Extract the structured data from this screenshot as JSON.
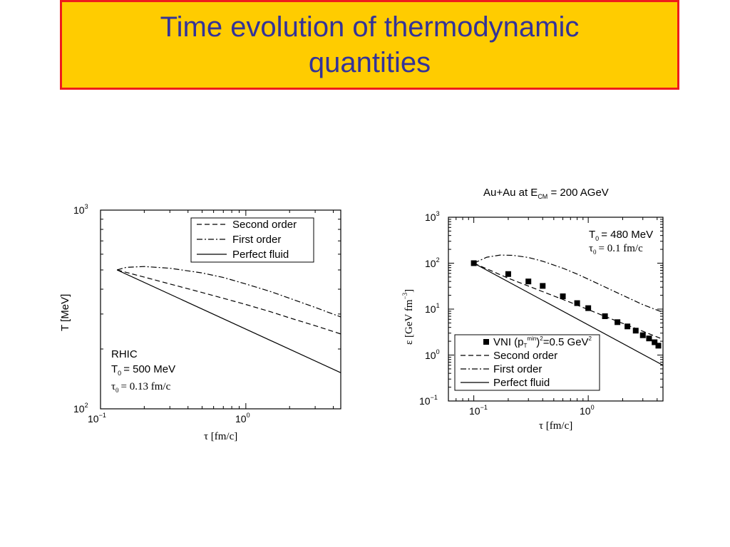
{
  "slide": {
    "title": "Time evolution of thermodynamic quantities",
    "colors": {
      "title_bg": "#FFCC00",
      "title_border": "#EE1C1C",
      "title_text": "#333399"
    }
  },
  "chart_data": [
    {
      "type": "line",
      "xscale": "log",
      "yscale": "log",
      "xlim": [
        0.1,
        4.5
      ],
      "ylim": [
        100,
        1000
      ],
      "xlabel": "τ [fm/c]",
      "ylabel": "T [MeV]",
      "xticks": [
        {
          "base": "10",
          "exp": "−1"
        },
        {
          "base": "10",
          "exp": "0"
        }
      ],
      "yticks": [
        {
          "base": "10",
          "exp": "2"
        },
        {
          "base": "10",
          "exp": "3"
        }
      ],
      "legend": [
        "Second order",
        "First order",
        "Perfect fluid"
      ],
      "annotation": {
        "system": "RHIC",
        "t0_label": "T",
        "t0_sub": "0",
        "t0_value": "= 500 MeV",
        "tau0_label": "τ",
        "tau0_sub": "0",
        "tau0_value": "= 0.13 fm/c"
      },
      "series": [
        {
          "name": "Second order",
          "style": "dashed",
          "x": [
            0.13,
            0.2,
            0.3,
            0.5,
            0.7,
            1.0,
            1.5,
            2.0,
            3.0,
            4.5
          ],
          "y": [
            500,
            460,
            425,
            385,
            360,
            335,
            307,
            287,
            262,
            238
          ]
        },
        {
          "name": "First order",
          "style": "dashdot",
          "x": [
            0.13,
            0.15,
            0.2,
            0.3,
            0.5,
            0.7,
            1.0,
            1.5,
            2.0,
            3.0,
            4.5
          ],
          "y": [
            500,
            515,
            520,
            510,
            483,
            458,
            425,
            388,
            360,
            324,
            290
          ]
        },
        {
          "name": "Perfect fluid",
          "style": "solid",
          "x": [
            0.13,
            4.5
          ],
          "y": [
            500,
            152
          ]
        }
      ]
    },
    {
      "type": "line",
      "xscale": "log",
      "yscale": "log",
      "xlim": [
        0.06,
        4.5
      ],
      "ylim": [
        0.1,
        1000
      ],
      "title_main": "Au+Au at E",
      "title_sub": "CM",
      "title_rest": " = 200 AGeV",
      "xlabel": "τ [fm/c]",
      "ylabel_main": "ε [GeV fm",
      "ylabel_sup": "−3",
      "ylabel_end": "]",
      "xticks": [
        {
          "base": "10",
          "exp": "−1"
        },
        {
          "base": "10",
          "exp": "0"
        }
      ],
      "yticks": [
        {
          "base": "10",
          "exp": "−1"
        },
        {
          "base": "10",
          "exp": "0"
        },
        {
          "base": "10",
          "exp": "1"
        },
        {
          "base": "10",
          "exp": "2"
        },
        {
          "base": "10",
          "exp": "3"
        }
      ],
      "legend_vni": {
        "main": "VNI (p",
        "sub": "T",
        "sup": "min",
        "rest": ")",
        "sup2": "2",
        "end": "=0.5 GeV",
        "sup3": "2"
      },
      "legend": [
        "Second order",
        "First order",
        "Perfect fluid"
      ],
      "annotation": {
        "t0_label": "T",
        "t0_sub": "0",
        "t0_value": "= 480 MeV",
        "tau0_label": "τ",
        "tau0_sub": "0",
        "tau0_value": "= 0.1 fm/c"
      },
      "series": [
        {
          "name": "VNI",
          "style": "markers",
          "x": [
            0.1,
            0.2,
            0.3,
            0.4,
            0.6,
            0.8,
            1.0,
            1.4,
            1.8,
            2.2,
            2.6,
            3.0,
            3.4,
            3.8,
            4.1
          ],
          "y": [
            100,
            58,
            40,
            32,
            19,
            13.5,
            10.5,
            7.0,
            5.2,
            4.2,
            3.4,
            2.7,
            2.3,
            1.9,
            1.6
          ]
        },
        {
          "name": "Second order",
          "style": "dashed",
          "x": [
            0.1,
            0.2,
            0.4,
            0.7,
            1.0,
            1.5,
            2.0,
            3.0,
            4.5
          ],
          "y": [
            100,
            47,
            24,
            14,
            9.8,
            6.5,
            4.9,
            3.3,
            2.2
          ]
        },
        {
          "name": "First order",
          "style": "dashdot",
          "x": [
            0.1,
            0.13,
            0.17,
            0.22,
            0.3,
            0.4,
            0.6,
            0.8,
            1.0,
            1.5,
            2.0,
            3.0,
            4.5
          ],
          "y": [
            100,
            135,
            150,
            148,
            133,
            110,
            78,
            58,
            45,
            28,
            20,
            12.5,
            8.5
          ]
        },
        {
          "name": "Perfect fluid",
          "style": "solid",
          "x": [
            0.1,
            4.5
          ],
          "y": [
            100,
            0.6
          ]
        }
      ]
    }
  ]
}
